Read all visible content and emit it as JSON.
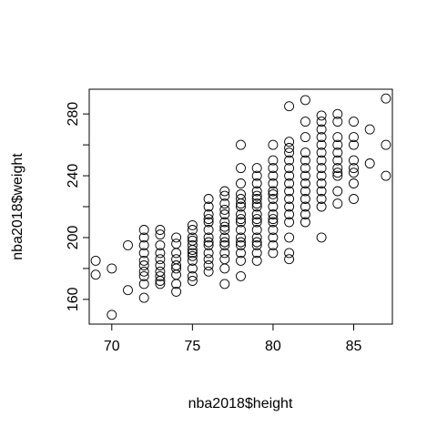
{
  "chart_data": {
    "type": "scatter",
    "title": "",
    "xlabel": "nba2018$height",
    "ylabel": "nba2018$weight",
    "xlim": [
      68.6,
      87.4
    ],
    "ylim": [
      144,
      296
    ],
    "x_ticks": [
      70,
      75,
      80,
      85
    ],
    "y_ticks": [
      160,
      200,
      240,
      280
    ],
    "grid": false,
    "marker": "open-circle",
    "color": "#000000",
    "series": [
      {
        "points": [
          [
            69,
            185
          ],
          [
            69,
            176
          ],
          [
            70,
            150
          ],
          [
            70,
            180
          ],
          [
            71,
            195
          ],
          [
            71,
            166
          ],
          [
            72,
            205
          ],
          [
            72,
            200
          ],
          [
            72,
            195
          ],
          [
            72,
            190
          ],
          [
            72,
            185
          ],
          [
            72,
            182
          ],
          [
            72,
            178
          ],
          [
            72,
            175
          ],
          [
            72,
            170
          ],
          [
            72,
            161
          ],
          [
            73,
            205
          ],
          [
            73,
            202
          ],
          [
            73,
            195
          ],
          [
            73,
            190
          ],
          [
            73,
            186
          ],
          [
            73,
            182
          ],
          [
            73,
            178
          ],
          [
            73,
            175
          ],
          [
            73,
            172
          ],
          [
            73,
            170
          ],
          [
            74,
            200
          ],
          [
            74,
            196
          ],
          [
            74,
            190
          ],
          [
            74,
            186
          ],
          [
            74,
            182
          ],
          [
            74,
            180
          ],
          [
            74,
            176
          ],
          [
            74,
            170
          ],
          [
            74,
            165
          ],
          [
            75,
            208
          ],
          [
            75,
            205
          ],
          [
            75,
            200
          ],
          [
            75,
            198
          ],
          [
            75,
            195
          ],
          [
            75,
            192
          ],
          [
            75,
            190
          ],
          [
            75,
            188
          ],
          [
            75,
            185
          ],
          [
            75,
            180
          ],
          [
            75,
            175
          ],
          [
            75,
            172
          ],
          [
            76,
            225
          ],
          [
            76,
            220
          ],
          [
            76,
            215
          ],
          [
            76,
            212
          ],
          [
            76,
            210
          ],
          [
            76,
            205
          ],
          [
            76,
            200
          ],
          [
            76,
            197
          ],
          [
            76,
            195
          ],
          [
            76,
            190
          ],
          [
            76,
            186
          ],
          [
            76,
            182
          ],
          [
            76,
            178
          ],
          [
            77,
            230
          ],
          [
            77,
            227
          ],
          [
            77,
            222
          ],
          [
            77,
            218
          ],
          [
            77,
            215
          ],
          [
            77,
            210
          ],
          [
            77,
            207
          ],
          [
            77,
            205
          ],
          [
            77,
            200
          ],
          [
            77,
            197
          ],
          [
            77,
            195
          ],
          [
            77,
            190
          ],
          [
            77,
            186
          ],
          [
            77,
            180
          ],
          [
            77,
            170
          ],
          [
            78,
            260
          ],
          [
            78,
            245
          ],
          [
            78,
            235
          ],
          [
            78,
            228
          ],
          [
            78,
            225
          ],
          [
            78,
            222
          ],
          [
            78,
            220
          ],
          [
            78,
            215
          ],
          [
            78,
            212
          ],
          [
            78,
            210
          ],
          [
            78,
            205
          ],
          [
            78,
            200
          ],
          [
            78,
            197
          ],
          [
            78,
            195
          ],
          [
            78,
            190
          ],
          [
            78,
            185
          ],
          [
            78,
            175
          ],
          [
            79,
            245
          ],
          [
            79,
            240
          ],
          [
            79,
            235
          ],
          [
            79,
            230
          ],
          [
            79,
            227
          ],
          [
            79,
            225
          ],
          [
            79,
            222
          ],
          [
            79,
            220
          ],
          [
            79,
            215
          ],
          [
            79,
            212
          ],
          [
            79,
            210
          ],
          [
            79,
            205
          ],
          [
            79,
            200
          ],
          [
            79,
            197
          ],
          [
            79,
            195
          ],
          [
            79,
            190
          ],
          [
            79,
            185
          ],
          [
            80,
            260
          ],
          [
            80,
            250
          ],
          [
            80,
            245
          ],
          [
            80,
            240
          ],
          [
            80,
            235
          ],
          [
            80,
            230
          ],
          [
            80,
            228
          ],
          [
            80,
            225
          ],
          [
            80,
            220
          ],
          [
            80,
            215
          ],
          [
            80,
            212
          ],
          [
            80,
            210
          ],
          [
            80,
            205
          ],
          [
            80,
            200
          ],
          [
            80,
            195
          ],
          [
            80,
            190
          ],
          [
            81,
            285
          ],
          [
            81,
            262
          ],
          [
            81,
            258
          ],
          [
            81,
            255
          ],
          [
            81,
            250
          ],
          [
            81,
            245
          ],
          [
            81,
            240
          ],
          [
            81,
            235
          ],
          [
            81,
            230
          ],
          [
            81,
            225
          ],
          [
            81,
            220
          ],
          [
            81,
            215
          ],
          [
            81,
            210
          ],
          [
            81,
            200
          ],
          [
            81,
            190
          ],
          [
            81,
            186
          ],
          [
            82,
            289
          ],
          [
            82,
            275
          ],
          [
            82,
            265
          ],
          [
            82,
            255
          ],
          [
            82,
            250
          ],
          [
            82,
            245
          ],
          [
            82,
            240
          ],
          [
            82,
            235
          ],
          [
            82,
            230
          ],
          [
            82,
            225
          ],
          [
            82,
            220
          ],
          [
            82,
            215
          ],
          [
            82,
            210
          ],
          [
            83,
            279
          ],
          [
            83,
            275
          ],
          [
            83,
            270
          ],
          [
            83,
            265
          ],
          [
            83,
            260
          ],
          [
            83,
            255
          ],
          [
            83,
            250
          ],
          [
            83,
            245
          ],
          [
            83,
            240
          ],
          [
            83,
            235
          ],
          [
            83,
            230
          ],
          [
            83,
            225
          ],
          [
            83,
            220
          ],
          [
            83,
            200
          ],
          [
            84,
            280
          ],
          [
            84,
            275
          ],
          [
            84,
            265
          ],
          [
            84,
            260
          ],
          [
            84,
            255
          ],
          [
            84,
            250
          ],
          [
            84,
            245
          ],
          [
            84,
            242
          ],
          [
            84,
            240
          ],
          [
            84,
            230
          ],
          [
            84,
            222
          ],
          [
            85,
            275
          ],
          [
            85,
            265
          ],
          [
            85,
            260
          ],
          [
            85,
            250
          ],
          [
            85,
            245
          ],
          [
            85,
            242
          ],
          [
            85,
            235
          ],
          [
            85,
            225
          ],
          [
            86,
            270
          ],
          [
            86,
            248
          ],
          [
            87,
            290
          ],
          [
            87,
            260
          ],
          [
            87,
            240
          ]
        ]
      }
    ]
  }
}
